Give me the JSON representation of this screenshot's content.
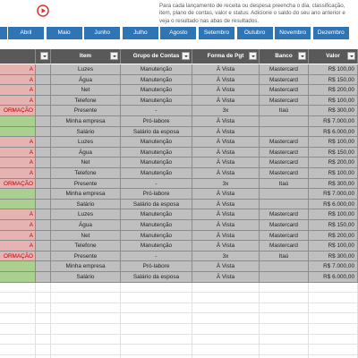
{
  "header": {
    "instructions": "Para cada lançamento de receita ou despesa preencha o dia, classificação, item, plano de contas, valor e status. Adicione o saldo do seu ano anterior e veja o resultado nas abas de resultados."
  },
  "months": [
    "Abril",
    "Maio",
    "Junho",
    "Julho",
    "Agosto",
    "Setembro",
    "Outubro",
    "Novembro",
    "Dezembro"
  ],
  "table": {
    "columns": [
      "Item",
      "Grupo de Contas",
      "Forma de Pgt",
      "Banco",
      "Valor"
    ],
    "row_colors": [
      "#e6b3b3",
      "#e6b3b3",
      "#e6b3b3",
      "#e6b3b3",
      "#e6b3b3",
      "#a9d08e",
      "#a9d08e",
      "#e6b3b3",
      "#e6b3b3",
      "#e6b3b3",
      "#e6b3b3",
      "#e6b3b3",
      "#a9d08e",
      "#a9d08e",
      "#e6b3b3",
      "#e6b3b3",
      "#e6b3b3",
      "#e6b3b3",
      "#e6b3b3",
      "#a9d08e",
      "#a9d08e"
    ],
    "rows": [
      [
        "A",
        "Luzes",
        "Manutenção",
        "À Vista",
        "Mastercard",
        "R$ 100,00"
      ],
      [
        "A",
        "Água",
        "Manutenção",
        "À Vista",
        "Mastercard",
        "R$ 150,00"
      ],
      [
        "A",
        "Net",
        "Manutenção",
        "À Vista",
        "Mastercard",
        "R$ 200,00"
      ],
      [
        "A",
        "Telefone",
        "Manutenção",
        "À Vista",
        "Mastercard",
        "R$ 100,00"
      ],
      [
        "ORMAÇÃO",
        "Presente",
        "-",
        "3x",
        "Itaú",
        "R$ 300,00"
      ],
      [
        null,
        "Minha empresa",
        "Pró-labore",
        "À Vista",
        null,
        "R$ 7.000,00"
      ],
      [
        null,
        "Salário",
        "Salário da esposa",
        "À Vista",
        null,
        "R$ 6.000,00"
      ],
      [
        "A",
        "Luzes",
        "Manutenção",
        "À Vista",
        "Mastercard",
        "R$ 100,00"
      ],
      [
        "A",
        "Água",
        "Manutenção",
        "À Vista",
        "Mastercard",
        "R$ 150,00"
      ],
      [
        "A",
        "Net",
        "Manutenção",
        "À Vista",
        "Mastercard",
        "R$ 200,00"
      ],
      [
        "A",
        "Telefone",
        "Manutenção",
        "À Vista",
        "Mastercard",
        "R$ 100,00"
      ],
      [
        "ORMAÇÃO",
        "Presente",
        "-",
        "3x",
        "Itaú",
        "R$ 300,00"
      ],
      [
        null,
        "Minha empresa",
        "Pró-labore",
        "À Vista",
        null,
        "R$ 7.000,00"
      ],
      [
        null,
        "Salário",
        "Salário da esposa",
        "À Vista",
        null,
        "R$ 6.000,00"
      ],
      [
        "A",
        "Luzes",
        "Manutenção",
        "À Vista",
        "Mastercard",
        "R$ 100,00"
      ],
      [
        "A",
        "Água",
        "Manutenção",
        "À Vista",
        "Mastercard",
        "R$ 150,00"
      ],
      [
        "A",
        "Net",
        "Manutenção",
        "À Vista",
        "Mastercard",
        "R$ 200,00"
      ],
      [
        "A",
        "Telefone",
        "Manutenção",
        "À Vista",
        "Mastercard",
        "R$ 100,00"
      ],
      [
        "ORMAÇÃO",
        "Presente",
        "-",
        "3x",
        "Itaú",
        "R$ 300,00"
      ],
      [
        null,
        "Minha empresa",
        "Pró-labore",
        "À Vista",
        null,
        "R$ 7.000,00"
      ],
      [
        null,
        "Salário",
        "Salário da esposa",
        "À Vista",
        null,
        "R$ 6.000,00"
      ]
    ]
  }
}
